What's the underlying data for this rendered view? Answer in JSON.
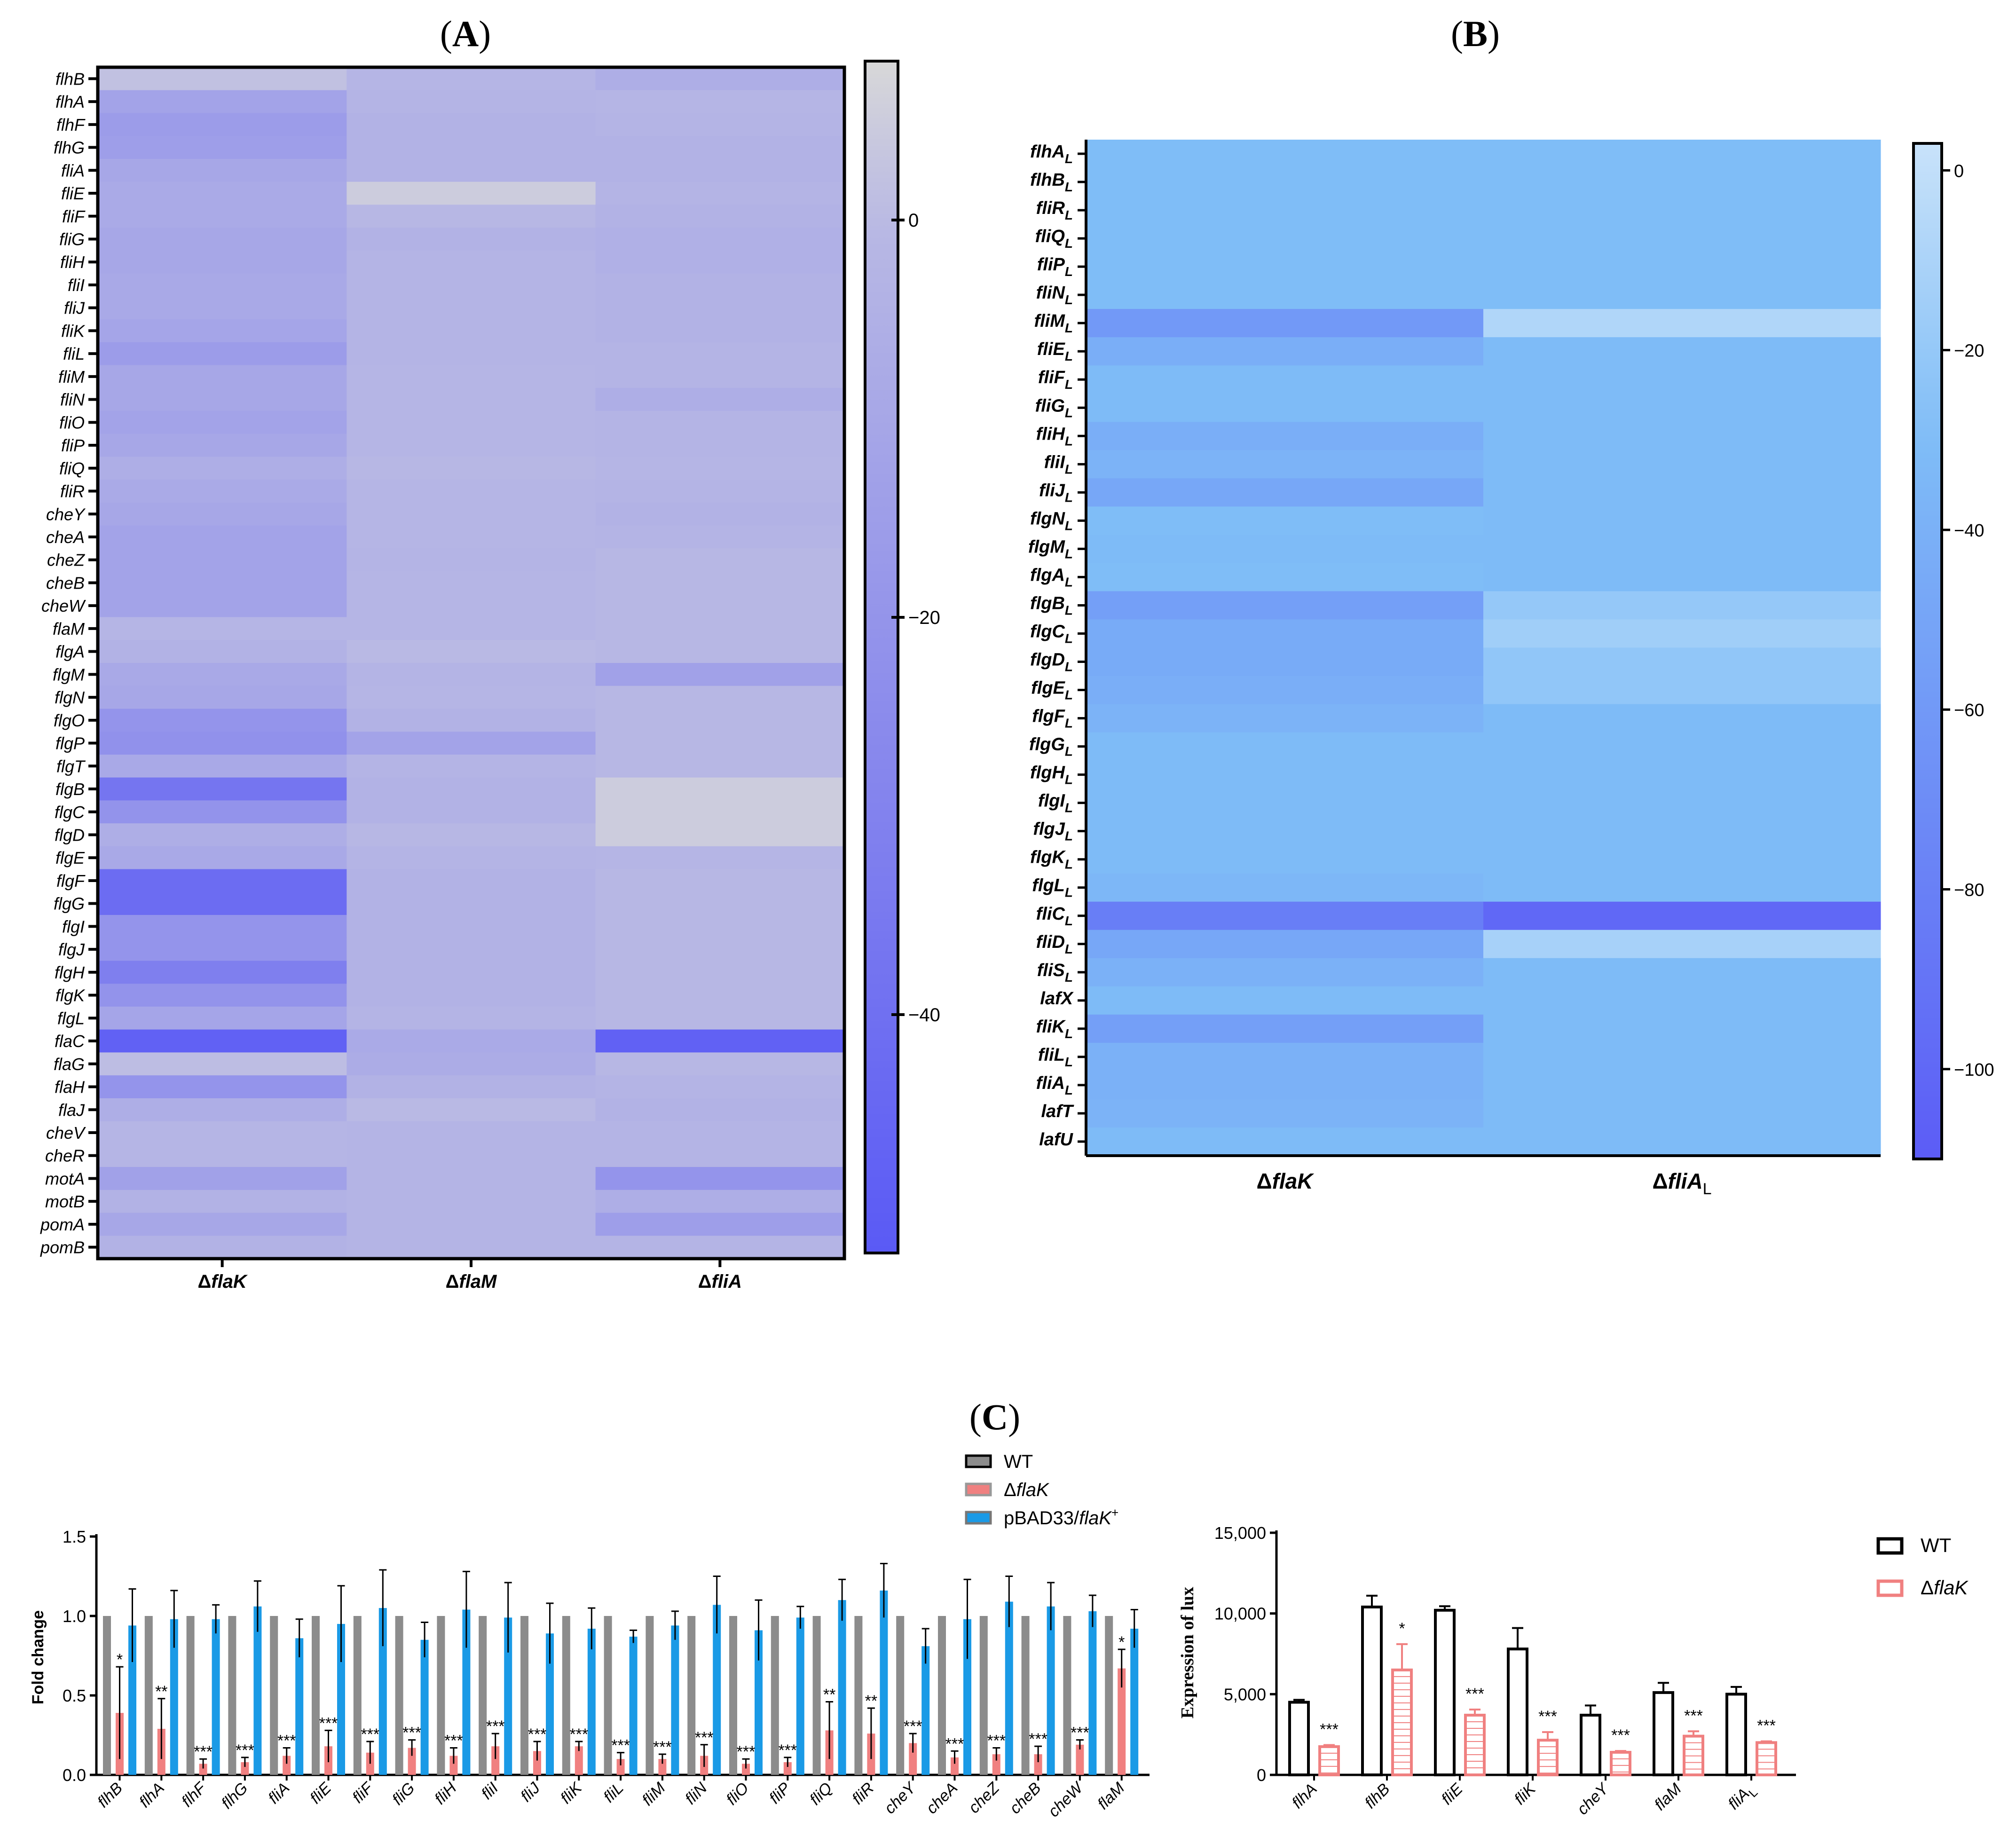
{
  "colors": {
    "heatA_light": "#d8d8d8",
    "heatA_mid": "#b9b9e4",
    "heatA_dark": "#5a5af5",
    "heatB_light": "#c8e2fa",
    "heatB_mid": "#7fbdf7",
    "heatB_dark": "#5c5cf6",
    "wt_bar": "#8c8c8c",
    "flak_bar": "#f08080",
    "pbad_bar": "#1a9ae6",
    "lux_wt": "#000000",
    "lux_flak": "#f08080"
  },
  "chart_data": [
    {
      "panel": "(A)",
      "type": "heatmap",
      "title": "(A)",
      "rows": [
        "flhB",
        "flhA",
        "flhF",
        "flhG",
        "fliA",
        "fliE",
        "fliF",
        "fliG",
        "fliH",
        "fliI",
        "fliJ",
        "fliK",
        "fliL",
        "fliM",
        "fliN",
        "fliO",
        "fliP",
        "fliQ",
        "fliR",
        "cheY",
        "cheA",
        "cheZ",
        "cheB",
        "cheW",
        "flaM",
        "flgA",
        "flgM",
        "flgN",
        "flgO",
        "flgP",
        "flgT",
        "flgB",
        "flgC",
        "flgD",
        "flgE",
        "flgF",
        "flgG",
        "flgI",
        "flgJ",
        "flgH",
        "flgK",
        "flgL",
        "flaC",
        "flaG",
        "flaH",
        "flaJ",
        "cheV",
        "cheR",
        "motA",
        "motB",
        "pomA",
        "pomB"
      ],
      "columns": [
        "ΔflaK",
        "ΔflaM",
        "ΔfliA"
      ],
      "values": [
        [
          2,
          -2,
          -6
        ],
        [
          -12,
          -3,
          -2
        ],
        [
          -16,
          -4,
          -3
        ],
        [
          -15,
          -4,
          -4
        ],
        [
          -10,
          -4,
          -4
        ],
        [
          -8,
          5,
          -3
        ],
        [
          -8,
          -1,
          -4
        ],
        [
          -10,
          -4,
          -5
        ],
        [
          -10,
          -3,
          -5
        ],
        [
          -9,
          -3,
          -4
        ],
        [
          -9,
          -3,
          -4
        ],
        [
          -11,
          -3,
          -4
        ],
        [
          -16,
          -3,
          -3
        ],
        [
          -10,
          -2,
          -3
        ],
        [
          -10,
          -2,
          -6
        ],
        [
          -12,
          -2,
          -3
        ],
        [
          -10,
          -2,
          -3
        ],
        [
          -6,
          -1,
          -2
        ],
        [
          -8,
          -2,
          -3
        ],
        [
          -10,
          -2,
          -4
        ],
        [
          -12,
          -2,
          -3
        ],
        [
          -12,
          -3,
          -1
        ],
        [
          -12,
          -2,
          -1
        ],
        [
          -12,
          -2,
          -1
        ],
        [
          -2,
          -2,
          -1
        ],
        [
          -4,
          0,
          -1
        ],
        [
          -9,
          -3,
          -13
        ],
        [
          -10,
          -2,
          -1
        ],
        [
          -20,
          -4,
          -1
        ],
        [
          -22,
          -12,
          -1
        ],
        [
          -9,
          -3,
          -1
        ],
        [
          -37,
          -4,
          5
        ],
        [
          -21,
          -4,
          5
        ],
        [
          -6,
          -1,
          5
        ],
        [
          -9,
          -3,
          -2
        ],
        [
          -42,
          -4,
          -1
        ],
        [
          -42,
          -4,
          -1
        ],
        [
          -20,
          -4,
          -1
        ],
        [
          -20,
          -4,
          -1
        ],
        [
          -32,
          -4,
          -1
        ],
        [
          -21,
          -4,
          -1
        ],
        [
          -11,
          -3,
          -1
        ],
        [
          -48,
          -8,
          -48
        ],
        [
          1,
          -7,
          -1
        ],
        [
          -20,
          -4,
          -3
        ],
        [
          -6,
          0,
          -4
        ],
        [
          -2,
          -3,
          -3
        ],
        [
          -2,
          -3,
          -3
        ],
        [
          -13,
          -3,
          -20
        ],
        [
          -4,
          -3,
          -6
        ],
        [
          -10,
          -3,
          -15
        ],
        [
          -4,
          -3,
          -3
        ]
      ],
      "colorbar": {
        "min": -52,
        "max": 8,
        "ticks": [
          0,
          -20,
          -40
        ]
      }
    },
    {
      "panel": "(B)",
      "type": "heatmap",
      "title": "(B)",
      "rows": [
        "flhA",
        "flhB",
        "fliR",
        "fliQ",
        "fliP",
        "fliN",
        "fliM",
        "fliE",
        "fliF",
        "fliG",
        "fliH",
        "fliI",
        "fliJ",
        "flgN",
        "flgM",
        "flgA",
        "flgB",
        "flgC",
        "flgD",
        "flgE",
        "flgF",
        "flgG",
        "flgH",
        "flgI",
        "flgJ",
        "flgK",
        "flgL",
        "fliC",
        "fliD",
        "fliS",
        "lafX",
        "fliK",
        "fliL",
        "fliA",
        "lafT",
        "lafU"
      ],
      "row_subscripts": [
        "L",
        "L",
        "L",
        "L",
        "L",
        "L",
        "L",
        "L",
        "L",
        "L",
        "L",
        "L",
        "L",
        "L",
        "L",
        "L",
        "L",
        "L",
        "L",
        "L",
        "L",
        "L",
        "L",
        "L",
        "L",
        "L",
        "L",
        "L",
        "L",
        "L",
        "",
        "L",
        "L",
        "L",
        "",
        ""
      ],
      "columns": [
        "ΔflaK",
        "ΔfliA"
      ],
      "column_subscripts": [
        "",
        "L"
      ],
      "values": [
        [
          -30,
          -30
        ],
        [
          -30,
          -30
        ],
        [
          -30,
          -30
        ],
        [
          -30,
          -30
        ],
        [
          -30,
          -30
        ],
        [
          -30,
          -30
        ],
        [
          -60,
          -8
        ],
        [
          -42,
          -32
        ],
        [
          -32,
          -32
        ],
        [
          -32,
          -32
        ],
        [
          -42,
          -32
        ],
        [
          -38,
          -32
        ],
        [
          -48,
          -32
        ],
        [
          -30,
          -32
        ],
        [
          -32,
          -32
        ],
        [
          -30,
          -32
        ],
        [
          -55,
          -20
        ],
        [
          -45,
          -15
        ],
        [
          -45,
          -22
        ],
        [
          -42,
          -22
        ],
        [
          -38,
          -32
        ],
        [
          -32,
          -32
        ],
        [
          -32,
          -32
        ],
        [
          -32,
          -32
        ],
        [
          -32,
          -32
        ],
        [
          -32,
          -32
        ],
        [
          -35,
          -32
        ],
        [
          -82,
          -100
        ],
        [
          -48,
          -12
        ],
        [
          -40,
          -32
        ],
        [
          -32,
          -32
        ],
        [
          -55,
          -32
        ],
        [
          -40,
          -32
        ],
        [
          -40,
          -32
        ],
        [
          -38,
          -32
        ],
        [
          -32,
          -32
        ]
      ],
      "colorbar": {
        "min": -110,
        "max": 3,
        "ticks": [
          0,
          -20,
          -40,
          -60,
          -80,
          -100
        ]
      }
    },
    {
      "panel": "(C) left",
      "type": "bar",
      "title": "(C)",
      "ylabel": "Fold change",
      "ylim": [
        0,
        1.5
      ],
      "yticks": [
        "0.0",
        "0.5",
        "1.0",
        "1.5"
      ],
      "categories": [
        "flhB",
        "flhA",
        "flhF",
        "flhG",
        "fliA",
        "fliE",
        "fliF",
        "fliG",
        "fliH",
        "fliI",
        "fliJ",
        "fliK",
        "fliL",
        "fliM",
        "fliN",
        "fliO",
        "fliP",
        "fliQ",
        "fliR",
        "cheY",
        "cheA",
        "cheZ",
        "cheB",
        "cheW",
        "flaM"
      ],
      "series": [
        {
          "name": "WT",
          "values": [
            1,
            1,
            1,
            1,
            1,
            1,
            1,
            1,
            1,
            1,
            1,
            1,
            1,
            1,
            1,
            1,
            1,
            1,
            1,
            1,
            1,
            1,
            1,
            1,
            1
          ]
        },
        {
          "name": "ΔflaK",
          "values": [
            0.39,
            0.29,
            0.07,
            0.08,
            0.12,
            0.18,
            0.14,
            0.17,
            0.12,
            0.18,
            0.15,
            0.18,
            0.1,
            0.1,
            0.12,
            0.07,
            0.08,
            0.28,
            0.26,
            0.2,
            0.11,
            0.13,
            0.13,
            0.19,
            0.67
          ],
          "errors": [
            0.29,
            0.19,
            0.03,
            0.03,
            0.05,
            0.1,
            0.07,
            0.05,
            0.05,
            0.08,
            0.06,
            0.03,
            0.04,
            0.03,
            0.07,
            0.03,
            0.03,
            0.18,
            0.16,
            0.06,
            0.04,
            0.04,
            0.05,
            0.03,
            0.12
          ]
        },
        {
          "name": "pBAD33/flaK+",
          "values": [
            0.94,
            0.98,
            0.98,
            1.06,
            0.86,
            0.95,
            1.05,
            0.85,
            1.04,
            0.99,
            0.89,
            0.92,
            0.87,
            0.94,
            1.07,
            0.91,
            0.99,
            1.1,
            1.16,
            0.81,
            0.98,
            1.09,
            1.06,
            1.03,
            0.92
          ],
          "errors": [
            0.23,
            0.18,
            0.09,
            0.16,
            0.12,
            0.24,
            0.24,
            0.11,
            0.24,
            0.22,
            0.19,
            0.13,
            0.04,
            0.09,
            0.18,
            0.19,
            0.07,
            0.13,
            0.17,
            0.11,
            0.25,
            0.16,
            0.15,
            0.1,
            0.12
          ]
        }
      ],
      "significance": [
        "*",
        "**",
        "***",
        "***",
        "***",
        "***",
        "***",
        "***",
        "***",
        "***",
        "***",
        "***",
        "***",
        "***",
        "***",
        "***",
        "***",
        "**",
        "**",
        "***",
        "***",
        "***",
        "***",
        "***",
        "*"
      ]
    },
    {
      "panel": "(C) right",
      "type": "bar",
      "ylabel": "Expression of lux",
      "ylim": [
        0,
        15000
      ],
      "yticks": [
        "0",
        "5,000",
        "10,000",
        "15,000"
      ],
      "categories": [
        "flhA",
        "flhB",
        "fliE",
        "fliK",
        "cheY",
        "flaM",
        "fliA"
      ],
      "category_subscripts": [
        "",
        "",
        "",
        "",
        "",
        "",
        "L"
      ],
      "series": [
        {
          "name": "WT",
          "values": [
            4500,
            10400,
            10200,
            7800,
            3700,
            5100,
            5000
          ],
          "errors": [
            150,
            700,
            250,
            1300,
            600,
            600,
            450
          ]
        },
        {
          "name": "ΔflaK",
          "values": [
            1750,
            6500,
            3700,
            2150,
            1400,
            2400,
            2000
          ],
          "errors": [
            100,
            1600,
            350,
            500,
            80,
            300,
            80
          ]
        }
      ],
      "significance": [
        "***",
        "*",
        "***",
        "***",
        "***",
        "***",
        "***"
      ]
    }
  ],
  "legend_c_left": [
    {
      "label": "WT"
    },
    {
      "label": "ΔflaK",
      "base": "Δ",
      "italic": "flaK"
    },
    {
      "label": "pBAD33/flaK+",
      "base": "pBAD33/",
      "italic": "flaK",
      "sup": "+"
    }
  ],
  "legend_c_right": [
    {
      "label": "WT"
    },
    {
      "label": "ΔflaK",
      "base": "Δ",
      "italic": "flaK"
    }
  ]
}
